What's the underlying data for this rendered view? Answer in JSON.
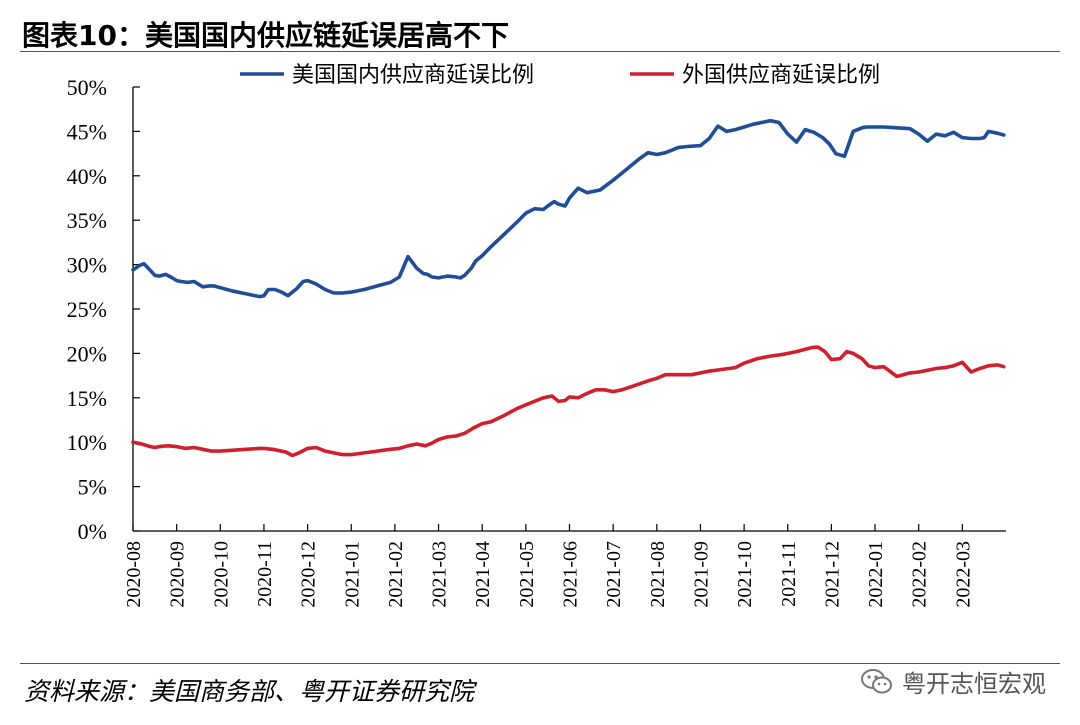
{
  "header": {
    "title": "图表10：美国国内供应链延误居高不下"
  },
  "footer": {
    "source": "资料来源：美国商务部、粤开证券研究院",
    "watermark": "粤开志恒宏观"
  },
  "colors": {
    "us_series": "#1f4e96",
    "foreign_series": "#d0202e"
  },
  "chart_data": {
    "type": "line",
    "title": "美国国内供应链延误居高不下",
    "xlabel": "",
    "ylabel": "",
    "ylim": [
      0,
      50
    ],
    "y_ticks": [
      "0%",
      "5%",
      "10%",
      "15%",
      "20%",
      "25%",
      "30%",
      "35%",
      "40%",
      "45%",
      "50%"
    ],
    "x_tick_labels": [
      "2020-08",
      "2020-09",
      "2020-10",
      "2020-11",
      "2020-12",
      "2021-01",
      "2021-02",
      "2021-03",
      "2021-04",
      "2021-05",
      "2021-06",
      "2021-07",
      "2021-08",
      "2021-09",
      "2021-10",
      "2021-11",
      "2021-12",
      "2022-01",
      "2022-02",
      "2022-03"
    ],
    "x_range": [
      0,
      20
    ],
    "legend_position": "top",
    "series": [
      {
        "name": "美国国内供应商延误比例",
        "color": "#1f4e96",
        "x": [
          0,
          0.15,
          0.25,
          0.35,
          0.5,
          0.6,
          0.75,
          0.9,
          1.0,
          1.1,
          1.25,
          1.4,
          1.6,
          1.75,
          1.85,
          2.0,
          2.3,
          2.6,
          2.9,
          3.0,
          3.1,
          3.25,
          3.4,
          3.55,
          3.75,
          3.9,
          4.0,
          4.2,
          4.4,
          4.6,
          4.8,
          5.0,
          5.3,
          5.6,
          5.9,
          6.1,
          6.3,
          6.5,
          6.65,
          6.75,
          6.85,
          7.0,
          7.2,
          7.4,
          7.5,
          7.6,
          7.75,
          7.85,
          8.0,
          8.2,
          8.5,
          8.8,
          9.0,
          9.2,
          9.4,
          9.5,
          9.65,
          9.75,
          9.9,
          10.0,
          10.2,
          10.4,
          10.7,
          11.0,
          11.3,
          11.6,
          11.8,
          12.0,
          12.2,
          12.5,
          12.7,
          13.0,
          13.2,
          13.4,
          13.6,
          13.8,
          14.0,
          14.2,
          14.4,
          14.6,
          14.8,
          15.0,
          15.2,
          15.4,
          15.6,
          15.7,
          15.8,
          15.95,
          16.1,
          16.3,
          16.5,
          16.7,
          16.8,
          16.9,
          17.0,
          17.2,
          17.5,
          17.8,
          18.0,
          18.2,
          18.4,
          18.6,
          18.8,
          19.0,
          19.2,
          19.4,
          19.5,
          19.6,
          19.8,
          19.95
        ],
        "values": [
          29.4,
          29.9,
          30.1,
          29.6,
          28.8,
          28.7,
          28.9,
          28.5,
          28.2,
          28.1,
          28.0,
          28.1,
          27.5,
          27.6,
          27.6,
          27.4,
          27.0,
          26.7,
          26.4,
          26.5,
          27.2,
          27.2,
          26.9,
          26.5,
          27.3,
          28.1,
          28.2,
          27.8,
          27.2,
          26.8,
          26.8,
          26.9,
          27.2,
          27.6,
          28.0,
          28.6,
          30.9,
          29.6,
          29.0,
          28.9,
          28.6,
          28.5,
          28.7,
          28.6,
          28.5,
          28.8,
          29.6,
          30.4,
          31.0,
          32.0,
          33.4,
          34.8,
          35.8,
          36.3,
          36.2,
          36.6,
          37.1,
          36.8,
          36.6,
          37.5,
          38.6,
          38.1,
          38.4,
          39.5,
          40.7,
          41.9,
          42.6,
          42.4,
          42.6,
          43.2,
          43.3,
          43.4,
          44.2,
          45.6,
          45.0,
          45.2,
          45.5,
          45.8,
          46.0,
          46.2,
          46.0,
          44.7,
          43.8,
          45.2,
          44.9,
          44.6,
          44.3,
          43.6,
          42.5,
          42.2,
          45.0,
          45.4,
          45.5,
          45.5,
          45.5,
          45.5,
          45.4,
          45.3,
          44.7,
          43.9,
          44.7,
          44.5,
          44.9,
          44.3,
          44.2,
          44.2,
          44.3,
          45.0,
          44.8,
          44.6
        ]
      },
      {
        "name": "外国供应商延误比例",
        "color": "#d0202e",
        "x": [
          0,
          0.2,
          0.4,
          0.5,
          0.6,
          0.8,
          1.0,
          1.2,
          1.4,
          1.6,
          1.8,
          2.0,
          2.3,
          2.6,
          2.9,
          3.0,
          3.2,
          3.5,
          3.65,
          3.8,
          4.0,
          4.2,
          4.4,
          4.6,
          4.8,
          5.0,
          5.3,
          5.6,
          5.9,
          6.1,
          6.3,
          6.5,
          6.7,
          6.85,
          7.0,
          7.2,
          7.4,
          7.6,
          7.8,
          8.0,
          8.2,
          8.5,
          8.8,
          9.1,
          9.4,
          9.6,
          9.75,
          9.9,
          10.0,
          10.2,
          10.4,
          10.6,
          10.8,
          11.0,
          11.2,
          11.5,
          11.8,
          12.0,
          12.2,
          12.5,
          12.8,
          13.0,
          13.2,
          13.5,
          13.8,
          14.0,
          14.3,
          14.6,
          14.9,
          15.2,
          15.5,
          15.6,
          15.7,
          15.85,
          16.0,
          16.2,
          16.35,
          16.5,
          16.7,
          16.85,
          17.0,
          17.2,
          17.5,
          17.8,
          18.0,
          18.2,
          18.4,
          18.6,
          18.8,
          19.0,
          19.2,
          19.4,
          19.6,
          19.8,
          19.95
        ],
        "values": [
          10.0,
          9.8,
          9.5,
          9.4,
          9.5,
          9.6,
          9.5,
          9.3,
          9.4,
          9.2,
          9.0,
          9.0,
          9.1,
          9.2,
          9.3,
          9.3,
          9.2,
          8.9,
          8.5,
          8.8,
          9.3,
          9.4,
          9.0,
          8.8,
          8.6,
          8.6,
          8.8,
          9.0,
          9.2,
          9.3,
          9.6,
          9.8,
          9.6,
          9.9,
          10.3,
          10.6,
          10.7,
          11.0,
          11.6,
          12.1,
          12.3,
          13.0,
          13.8,
          14.4,
          15.0,
          15.2,
          14.6,
          14.7,
          15.1,
          15.0,
          15.5,
          15.9,
          15.9,
          15.7,
          15.9,
          16.4,
          16.9,
          17.2,
          17.6,
          17.6,
          17.6,
          17.8,
          18.0,
          18.2,
          18.4,
          18.9,
          19.4,
          19.7,
          19.9,
          20.2,
          20.6,
          20.7,
          20.7,
          20.2,
          19.3,
          19.4,
          20.2,
          20.0,
          19.4,
          18.6,
          18.4,
          18.5,
          17.4,
          17.8,
          17.9,
          18.1,
          18.3,
          18.4,
          18.6,
          19.0,
          17.9,
          18.3,
          18.6,
          18.7,
          18.5
        ]
      }
    ]
  }
}
